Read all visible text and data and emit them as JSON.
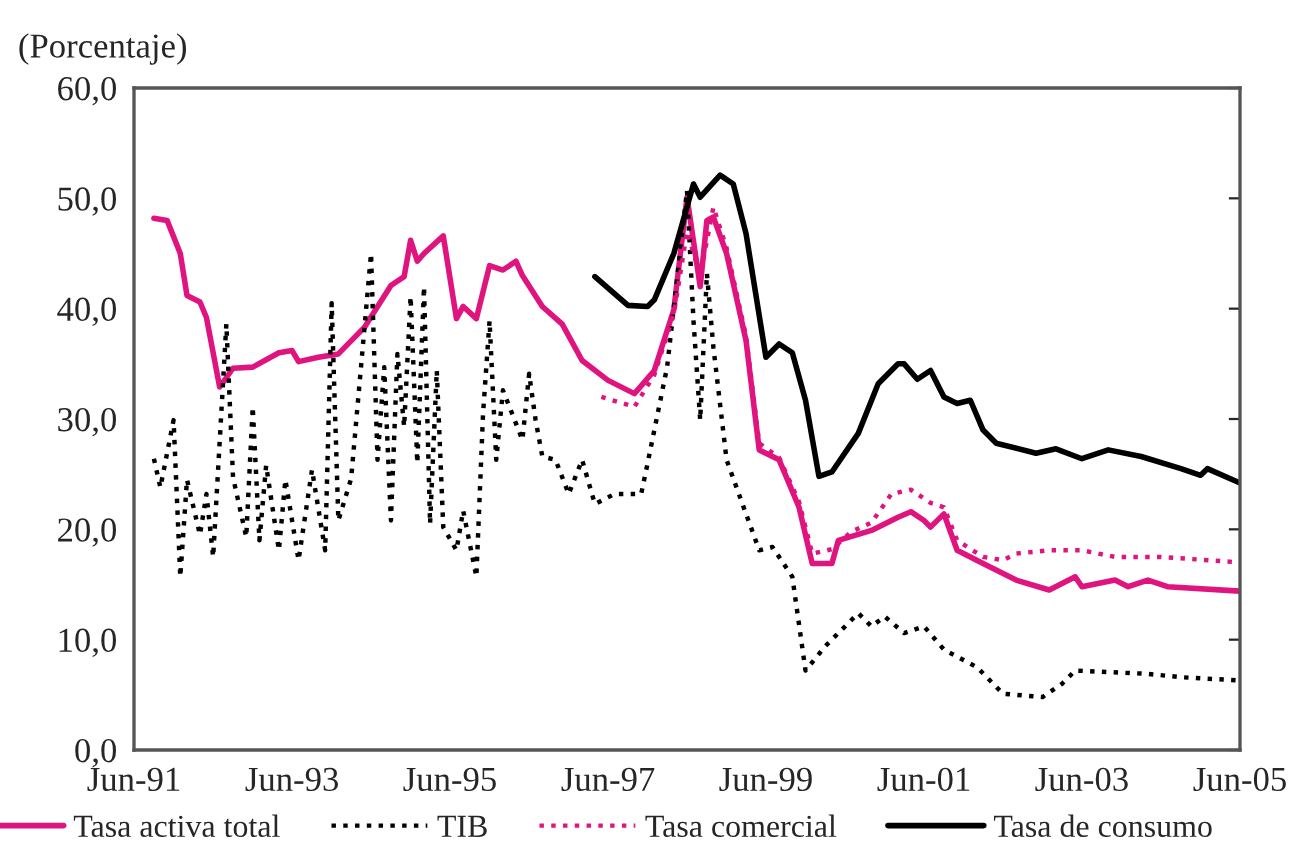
{
  "chart_data": {
    "type": "line",
    "ylabel": "(Porcentaje)",
    "xlim": [
      "1991-06",
      "2005-06"
    ],
    "xticks": [
      {
        "value": "1991-06",
        "label": "Jun-91"
      },
      {
        "value": "1993-06",
        "label": "Jun-93"
      },
      {
        "value": "1995-06",
        "label": "Jun-95"
      },
      {
        "value": "1997-06",
        "label": "Jun-97"
      },
      {
        "value": "1999-06",
        "label": "Jun-99"
      },
      {
        "value": "2001-06",
        "label": "Jun-01"
      },
      {
        "value": "2003-06",
        "label": "Jun-03"
      },
      {
        "value": "2005-06",
        "label": "Jun-05"
      }
    ],
    "ylim": [
      0,
      60
    ],
    "yticks": [
      {
        "value": 0,
        "label": "0,0"
      },
      {
        "value": 10,
        "label": "10,0"
      },
      {
        "value": 20,
        "label": "20,0"
      },
      {
        "value": 30,
        "label": "30,0"
      },
      {
        "value": 40,
        "label": "40,0"
      },
      {
        "value": 50,
        "label": "50,0"
      },
      {
        "value": 60,
        "label": "60,0"
      }
    ],
    "grid": false,
    "legend": "bottom",
    "marker": "none",
    "series": [
      {
        "name": "Tasa activa total",
        "color": "#e0147f",
        "line_style": "solid",
        "x": [
          "1991-09",
          "1991-11",
          "1992-01",
          "1992-02",
          "1992-04",
          "1992-05",
          "1992-07",
          "1992-09",
          "1992-12",
          "1993-04",
          "1993-06",
          "1993-07",
          "1993-10",
          "1994-01",
          "1994-05",
          "1994-09",
          "1994-11",
          "1994-12",
          "1995-01",
          "1995-02",
          "1995-05",
          "1995-07",
          "1995-08",
          "1995-10",
          "1995-12",
          "1996-02",
          "1996-04",
          "1996-05",
          "1996-08",
          "1996-11",
          "1997-02",
          "1997-06",
          "1997-10",
          "1998-01",
          "1998-04",
          "1998-06",
          "1998-08",
          "1998-09",
          "1998-10",
          "1998-12",
          "1999-03",
          "1999-05",
          "1999-08",
          "1999-11",
          "2000-01",
          "2000-04",
          "2000-05",
          "2000-10",
          "2001-02",
          "2001-04",
          "2001-06",
          "2001-07",
          "2001-09",
          "2001-11",
          "2002-03",
          "2002-08",
          "2003-01",
          "2003-05",
          "2003-06",
          "2003-11",
          "2004-01",
          "2004-04",
          "2004-07",
          "2005-06"
        ],
        "values": [
          48.2,
          48.0,
          45.0,
          41.2,
          40.6,
          39.2,
          32.9,
          34.6,
          34.7,
          36.0,
          36.2,
          35.2,
          35.6,
          35.9,
          38.3,
          42.1,
          42.9,
          46.2,
          44.3,
          45.0,
          46.6,
          39.1,
          40.2,
          39.1,
          43.9,
          43.5,
          44.3,
          43.0,
          40.2,
          38.6,
          35.3,
          33.5,
          32.3,
          34.4,
          39.9,
          50.1,
          42.0,
          48.0,
          48.3,
          45.0,
          37.1,
          27.2,
          26.3,
          22.0,
          16.9,
          16.9,
          19.0,
          19.9,
          21.1,
          21.6,
          20.8,
          20.2,
          21.4,
          18.1,
          16.9,
          15.4,
          14.5,
          15.7,
          14.8,
          15.4,
          14.8,
          15.4,
          14.8,
          14.4
        ]
      },
      {
        "name": "TIB",
        "color": "#000000",
        "line_style": "dotted",
        "x": [
          "1991-09",
          "1991-10",
          "1991-12",
          "1992-01",
          "1992-02",
          "1992-04",
          "1992-05",
          "1992-06",
          "1992-08",
          "1992-09",
          "1992-11",
          "1992-12",
          "1993-01",
          "1993-02",
          "1993-04",
          "1993-05",
          "1993-07",
          "1993-09",
          "1993-11",
          "1993-12",
          "1994-01",
          "1994-03",
          "1994-06",
          "1994-07",
          "1994-08",
          "1994-09",
          "1994-10",
          "1994-11",
          "1994-12",
          "1995-01",
          "1995-02",
          "1995-03",
          "1995-04",
          "1995-05",
          "1995-07",
          "1995-08",
          "1995-10",
          "1995-11",
          "1995-12",
          "1996-01",
          "1996-02",
          "1996-04",
          "1996-05",
          "1996-06",
          "1996-07",
          "1996-08",
          "1996-10",
          "1996-12",
          "1997-02",
          "1997-04",
          "1997-07",
          "1997-11",
          "1997-12",
          "1998-03",
          "1998-06",
          "1998-07",
          "1998-08",
          "1998-09",
          "1998-10",
          "1998-12",
          "1999-03",
          "1999-05",
          "1999-07",
          "1999-10",
          "1999-12",
          "2000-03",
          "2000-08",
          "2000-10",
          "2000-12",
          "2001-03",
          "2001-06",
          "2001-09",
          "2002-02",
          "2002-06",
          "2002-12",
          "2003-03",
          "2003-05",
          "2004-04",
          "2004-09",
          "2005-06"
        ],
        "values": [
          26.4,
          23.8,
          29.9,
          15.7,
          24.5,
          19.5,
          23.2,
          17.5,
          38.6,
          24.7,
          19.3,
          31.1,
          19.0,
          25.8,
          18.1,
          24.5,
          17.2,
          25.4,
          18.1,
          40.5,
          20.8,
          24.6,
          45.0,
          26.3,
          34.7,
          20.8,
          35.9,
          29.3,
          41.1,
          26.0,
          42.0,
          20.5,
          34.4,
          20.2,
          18.1,
          21.7,
          15.7,
          30.5,
          38.9,
          26.3,
          32.6,
          29.6,
          28.1,
          34.1,
          29.9,
          26.6,
          26.3,
          23.2,
          26.3,
          22.3,
          23.2,
          23.2,
          26.0,
          34.7,
          50.7,
          38.9,
          29.9,
          43.2,
          36.5,
          26.3,
          21.4,
          18.1,
          18.4,
          15.7,
          7.2,
          9.4,
          12.4,
          11.2,
          12.1,
          10.6,
          11.2,
          9.1,
          7.5,
          5.1,
          4.8,
          6.0,
          7.2,
          6.9,
          6.6,
          6.3
        ]
      },
      {
        "name": "Tasa comercial",
        "color": "#e0147f",
        "line_style": "dotted",
        "x": [
          "1997-05",
          "1997-10",
          "1998-01",
          "1998-04",
          "1998-06",
          "1998-08",
          "1998-10",
          "1998-12",
          "1999-03",
          "1999-05",
          "1999-08",
          "1999-11",
          "2000-01",
          "2000-04",
          "2000-07",
          "2000-10",
          "2001-01",
          "2001-04",
          "2001-07",
          "2001-09",
          "2001-11",
          "2002-03",
          "2002-06",
          "2002-08",
          "2003-01",
          "2003-06",
          "2003-11",
          "2004-06",
          "2005-06"
        ],
        "values": [
          32.0,
          31.1,
          34.0,
          39.5,
          47.0,
          43.0,
          49.2,
          45.5,
          37.5,
          27.8,
          26.5,
          22.5,
          17.8,
          18.2,
          19.8,
          20.6,
          23.2,
          23.6,
          22.4,
          22.0,
          19.0,
          17.5,
          17.2,
          17.8,
          18.1,
          18.1,
          17.5,
          17.5,
          17.0
        ]
      },
      {
        "name": "Tasa de consumo",
        "color": "#000000",
        "line_style": "solid",
        "x": [
          "1997-04",
          "1997-09",
          "1997-12",
          "1998-01",
          "1998-04",
          "1998-07",
          "1998-08",
          "1998-11",
          "1999-01",
          "1999-03",
          "1999-06",
          "1999-08",
          "1999-10",
          "1999-12",
          "2000-02",
          "2000-04",
          "2000-08",
          "2000-11",
          "2001-02",
          "2001-03",
          "2001-05",
          "2001-07",
          "2001-09",
          "2001-11",
          "2002-01",
          "2002-03",
          "2002-05",
          "2002-11",
          "2003-02",
          "2003-06",
          "2003-10",
          "2004-03",
          "2004-09",
          "2004-12",
          "2005-01",
          "2005-06"
        ],
        "values": [
          42.9,
          40.3,
          40.2,
          40.8,
          45.0,
          51.3,
          50.1,
          52.1,
          51.3,
          46.8,
          35.6,
          36.8,
          36.0,
          31.7,
          24.8,
          25.2,
          28.7,
          33.2,
          35.0,
          35.0,
          33.6,
          34.4,
          32.0,
          31.4,
          31.7,
          29.0,
          27.8,
          26.9,
          27.3,
          26.4,
          27.2,
          26.6,
          25.5,
          24.9,
          25.5,
          24.2
        ]
      }
    ]
  }
}
